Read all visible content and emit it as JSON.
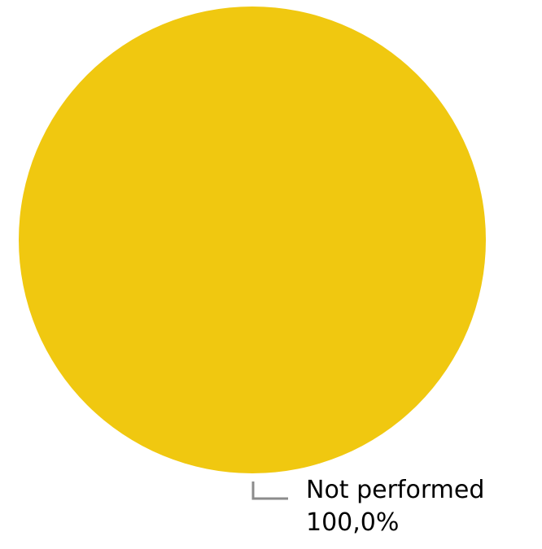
{
  "chart_data": {
    "type": "pie",
    "title": "",
    "slices": [
      {
        "label": "Not performed",
        "value": 100.0,
        "percent_label": "100,0%",
        "color": "#F0C810"
      }
    ],
    "legend": "none",
    "leader_line_color": "#8C8C8C"
  }
}
